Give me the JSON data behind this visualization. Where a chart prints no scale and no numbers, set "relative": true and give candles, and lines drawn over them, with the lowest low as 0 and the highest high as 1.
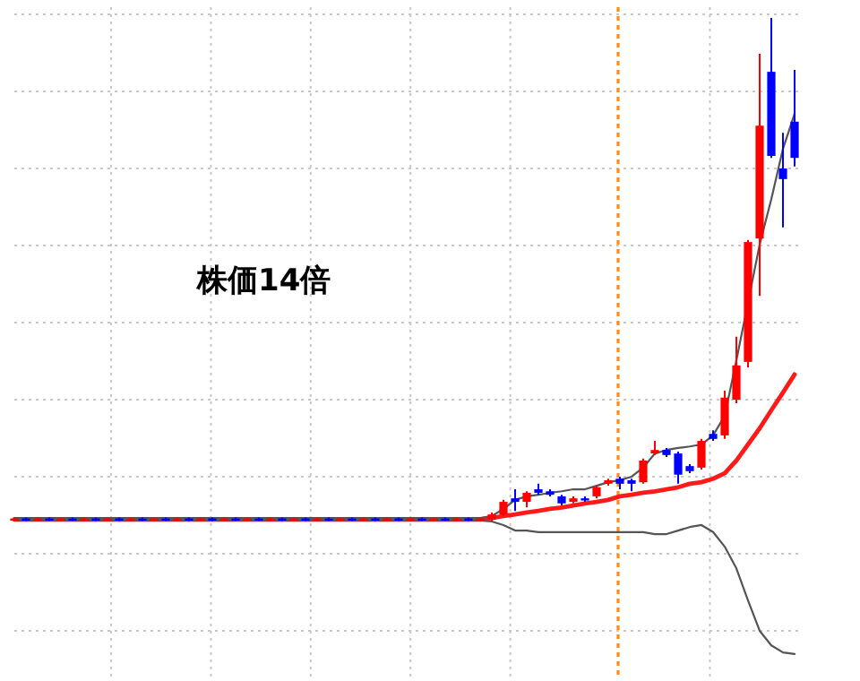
{
  "chart_data": {
    "type": "candlestick",
    "relative": true,
    "grid": true,
    "annotations": [
      "株価14倍"
    ],
    "categories": [
      null,
      null,
      null,
      null,
      null,
      null,
      null,
      null,
      null,
      null,
      null,
      null,
      null,
      null,
      null,
      null,
      null,
      null,
      null,
      null,
      null,
      null,
      null,
      null,
      null,
      null,
      null,
      null,
      null,
      null,
      null,
      null,
      null,
      null,
      null,
      null,
      null,
      null,
      null,
      null,
      null,
      null,
      null,
      null,
      null,
      null,
      null,
      null,
      null,
      null,
      null,
      null,
      null,
      null,
      null,
      null,
      null,
      null,
      null,
      null,
      null,
      null,
      null,
      null,
      null,
      null,
      null,
      null
    ],
    "ohlc": [
      [
        0.003,
        0.008,
        0,
        0.006
      ],
      [
        0.006,
        0.008,
        0.001,
        0.003
      ],
      [
        0.003,
        0.008,
        0,
        0.006
      ],
      [
        0.006,
        0.008,
        0.001,
        0.003
      ],
      [
        0.003,
        0.008,
        0,
        0.006
      ],
      [
        0.006,
        0.008,
        0.001,
        0.003
      ],
      [
        0.003,
        0.008,
        0,
        0.006
      ],
      [
        0.006,
        0.008,
        0.001,
        0.003
      ],
      [
        0.003,
        0.008,
        0,
        0.006
      ],
      [
        0.006,
        0.008,
        0.001,
        0.003
      ],
      [
        0.003,
        0.008,
        0,
        0.006
      ],
      [
        0.006,
        0.008,
        0.001,
        0.003
      ],
      [
        0.003,
        0.008,
        0,
        0.006
      ],
      [
        0.006,
        0.008,
        0.001,
        0.003
      ],
      [
        0.003,
        0.008,
        0,
        0.006
      ],
      [
        0.006,
        0.008,
        0.001,
        0.003
      ],
      [
        0.003,
        0.008,
        0,
        0.006
      ],
      [
        0.006,
        0.008,
        0.001,
        0.003
      ],
      [
        0.003,
        0.008,
        0,
        0.006
      ],
      [
        0.006,
        0.008,
        0.001,
        0.003
      ],
      [
        0.003,
        0.008,
        0,
        0.006
      ],
      [
        0.006,
        0.008,
        0.001,
        0.003
      ],
      [
        0.003,
        0.008,
        0,
        0.006
      ],
      [
        0.006,
        0.008,
        0.001,
        0.003
      ],
      [
        0.003,
        0.008,
        0,
        0.006
      ],
      [
        0.006,
        0.008,
        0.001,
        0.003
      ],
      [
        0.003,
        0.008,
        0,
        0.006
      ],
      [
        0.006,
        0.008,
        0.001,
        0.003
      ],
      [
        0.003,
        0.008,
        0,
        0.006
      ],
      [
        0.006,
        0.008,
        0.001,
        0.003
      ],
      [
        0.003,
        0.008,
        0,
        0.006
      ],
      [
        0.006,
        0.008,
        0.001,
        0.003
      ],
      [
        0.003,
        0.008,
        0,
        0.006
      ],
      [
        0.006,
        0.008,
        0.001,
        0.003
      ],
      [
        0.003,
        0.008,
        0,
        0.006
      ],
      [
        0.006,
        0.008,
        0.001,
        0.003
      ],
      [
        0.003,
        0.008,
        0,
        0.006
      ],
      [
        0.006,
        0.008,
        0.001,
        0.003
      ],
      [
        0.003,
        0.008,
        0,
        0.006
      ],
      [
        0.006,
        0.008,
        0.001,
        0.003
      ],
      [
        0.003,
        0.008,
        0,
        0.006
      ],
      [
        0.004,
        0.018,
        0,
        0.014
      ],
      [
        0.014,
        0.043,
        0.011,
        0.039
      ],
      [
        0.046,
        0.064,
        0.021,
        0.039
      ],
      [
        0.039,
        0.06,
        0.028,
        0.057
      ],
      [
        0.064,
        0.075,
        0.053,
        0.057
      ],
      [
        0.06,
        0.064,
        0.05,
        0.053
      ],
      [
        0.05,
        0.053,
        0.032,
        0.036
      ],
      [
        0.039,
        0.05,
        0.036,
        0.046
      ],
      [
        0.046,
        0.05,
        0.039,
        0.043
      ],
      [
        0.05,
        0.071,
        0.046,
        0.068
      ],
      [
        0.075,
        0.085,
        0.071,
        0.082
      ],
      [
        0.085,
        0.089,
        0.064,
        0.075
      ],
      [
        0.082,
        0.085,
        0.06,
        0.075
      ],
      [
        0.078,
        0.125,
        0.075,
        0.121
      ],
      [
        0.135,
        0.16,
        0.132,
        0.142
      ],
      [
        0.142,
        0.146,
        0.128,
        0.132
      ],
      [
        0.135,
        0.139,
        0.075,
        0.093
      ],
      [
        0.11,
        0.114,
        0.096,
        0.1
      ],
      [
        0.107,
        0.164,
        0.103,
        0.16
      ],
      [
        0.174,
        0.181,
        0.16,
        0.164
      ],
      [
        0.171,
        0.26,
        0.164,
        0.246
      ],
      [
        0.242,
        0.367,
        0.235,
        0.31
      ],
      [
        0.317,
        0.559,
        0.306,
        0.555
      ],
      [
        0.562,
        0.929,
        0.448,
        0.786
      ],
      [
        0.893,
        1,
        0.722,
        0.726
      ],
      [
        0.701,
        0.772,
        0.584,
        0.68
      ],
      [
        0.794,
        0.897,
        0.705,
        0.722
      ]
    ],
    "colors": [
      "#ff0000",
      "#0000ff",
      "#ff0000",
      "#0000ff",
      "#ff0000",
      "#0000ff",
      "#ff0000",
      "#0000ff",
      "#ff0000",
      "#0000ff",
      "#ff0000",
      "#0000ff",
      "#ff0000",
      "#0000ff",
      "#ff0000",
      "#0000ff",
      "#ff0000",
      "#0000ff",
      "#ff0000",
      "#0000ff",
      "#ff0000",
      "#0000ff",
      "#ff0000",
      "#0000ff",
      "#ff0000",
      "#0000ff",
      "#ff0000",
      "#0000ff",
      "#ff0000",
      "#0000ff",
      "#ff0000",
      "#0000ff",
      "#ff0000",
      "#0000ff",
      "#ff0000",
      "#0000ff",
      "#ff0000",
      "#0000ff",
      "#ff0000",
      "#0000ff",
      "#ff0000",
      "#ff0000",
      "#ff0000",
      "#0000ff",
      "#ff0000",
      "#0000ff",
      "#0000ff",
      "#0000ff",
      "#ff0000",
      "#0000ff",
      "#ff0000",
      "#ff0000",
      "#0000ff",
      "#0000ff",
      "#ff0000",
      "#ff0000",
      "#0000ff",
      "#0000ff",
      "#0000ff",
      "#ff0000",
      "#0000ff",
      "#ff0000",
      "#ff0000",
      "#ff0000",
      "#ff0000",
      "#0000ff",
      "#0000ff",
      "#0000ff"
    ],
    "series": [
      {
        "type": "line",
        "color": "#ff1a1a",
        "values": [
          0.004,
          0.004,
          0.004,
          0.004,
          0.004,
          0.004,
          0.004,
          0.004,
          0.004,
          0.004,
          0.004,
          0.004,
          0.004,
          0.004,
          0.004,
          0.004,
          0.004,
          0.004,
          0.004,
          0.004,
          0.004,
          0.004,
          0.004,
          0.004,
          0.004,
          0.004,
          0.004,
          0.004,
          0.004,
          0.004,
          0.004,
          0.004,
          0.004,
          0.004,
          0.004,
          0.004,
          0.004,
          0.004,
          0.004,
          0.004,
          0.004,
          0.007,
          0.011,
          0.014,
          0.018,
          0.021,
          0.025,
          0.028,
          0.032,
          0.036,
          0.039,
          0.043,
          0.05,
          0.053,
          0.057,
          0.06,
          0.064,
          0.068,
          0.075,
          0.078,
          0.085,
          0.096,
          0.121,
          0.153,
          0.185,
          0.221,
          0.256,
          0.292
        ]
      },
      {
        "type": "line",
        "color": "#555555",
        "values": [
          0.007,
          0.007,
          0.007,
          0.007,
          0.007,
          0.007,
          0.007,
          0.007,
          0.007,
          0.007,
          0.007,
          0.007,
          0.007,
          0.007,
          0.007,
          0.007,
          0.007,
          0.007,
          0.007,
          0.007,
          0.007,
          0.007,
          0.007,
          0.007,
          0.007,
          0.007,
          0.007,
          0.007,
          0.007,
          0.007,
          0.007,
          0.007,
          0.007,
          0.007,
          0.007,
          0.007,
          0.007,
          0.007,
          0.007,
          0.007,
          0.007,
          0.011,
          0.025,
          0.043,
          0.05,
          0.053,
          0.057,
          0.06,
          0.064,
          0.064,
          0.071,
          0.078,
          0.082,
          0.089,
          0.107,
          0.135,
          0.142,
          0.146,
          0.149,
          0.153,
          0.171,
          0.21,
          0.32,
          null,
          0.55,
          0.64,
          0.74,
          0.81
        ]
      },
      {
        "type": "line",
        "color": "#555555",
        "values": [
          0.002,
          0.002,
          0.002,
          0.002,
          0.002,
          0.002,
          0.002,
          0.002,
          0.002,
          0.002,
          0.002,
          0.002,
          0.002,
          0.002,
          0.002,
          0.002,
          0.002,
          0.002,
          0.002,
          0.002,
          0.002,
          0.002,
          0.002,
          0.002,
          0.002,
          0.002,
          0.002,
          0.002,
          0.002,
          0.002,
          0.002,
          0.002,
          0.002,
          0.002,
          0.002,
          0.002,
          0.002,
          0.002,
          0.002,
          0.002,
          0.002,
          0,
          -0.007,
          -0.018,
          -0.018,
          -0.021,
          -0.021,
          -0.021,
          -0.021,
          -0.021,
          -0.021,
          -0.021,
          -0.021,
          -0.021,
          -0.021,
          -0.025,
          -0.025,
          -0.018,
          -0.011,
          -0.007,
          -0.021,
          -0.05,
          -0.093,
          -0.157,
          -0.217,
          -0.246,
          -0.26,
          -0.263
        ]
      }
    ]
  }
}
